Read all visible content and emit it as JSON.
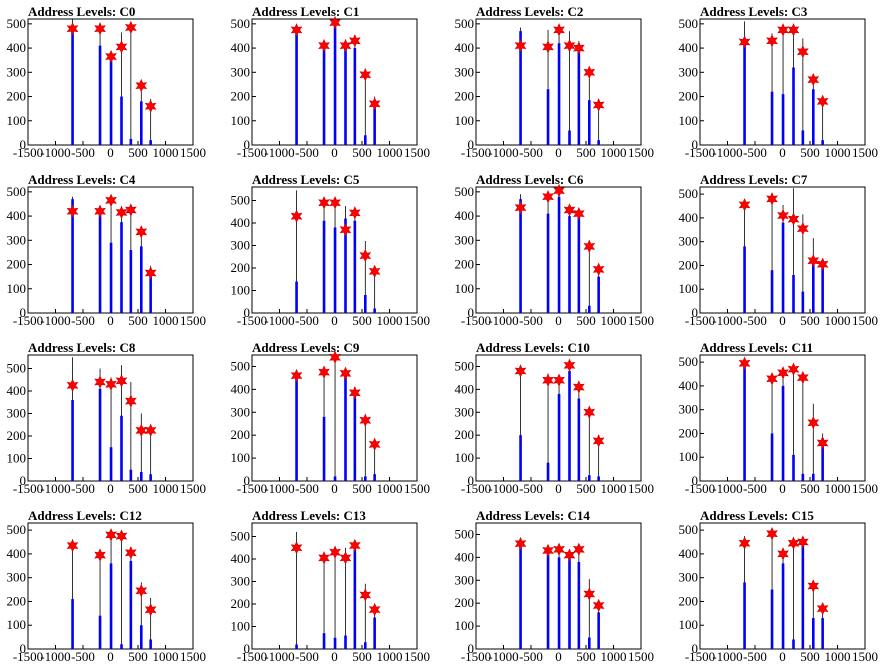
{
  "colors": {
    "bar": "#0000ff",
    "line": "#000000",
    "marker": "#ff0000",
    "marker_edge": "#cc0000"
  },
  "chart_data": [
    {
      "type": "bar",
      "title": "Address Levels: C0",
      "xlim": [
        -1500,
        1500
      ],
      "ylim": [
        0,
        520
      ],
      "xticks": [
        -1500,
        -1000,
        -500,
        0,
        500,
        1000,
        1500
      ],
      "yticks": [
        0,
        100,
        200,
        300,
        400,
        500
      ],
      "x": [
        -690,
        -190,
        10,
        200,
        370,
        560,
        730
      ],
      "peak_y": [
        480,
        480,
        365,
        405,
        485,
        245,
        160
      ],
      "line_top": [
        520,
        465,
        380,
        465,
        490,
        265,
        190
      ],
      "bar_height": [
        470,
        410,
        350,
        200,
        25,
        180,
        20
      ]
    },
    {
      "type": "bar",
      "title": "Address Levels: C1",
      "xlim": [
        -1500,
        1500
      ],
      "ylim": [
        0,
        520
      ],
      "xticks": [
        -1500,
        -1000,
        -500,
        0,
        500,
        1000,
        1500
      ],
      "yticks": [
        0,
        100,
        200,
        300,
        400,
        500
      ],
      "x": [
        -690,
        -190,
        10,
        200,
        370,
        560,
        730
      ],
      "peak_y": [
        475,
        410,
        505,
        410,
        430,
        290,
        170
      ],
      "line_top": [
        495,
        420,
        515,
        425,
        445,
        300,
        200
      ],
      "bar_height": [
        475,
        400,
        500,
        400,
        400,
        40,
        180
      ]
    },
    {
      "type": "bar",
      "title": "Address Levels: C2",
      "xlim": [
        -1500,
        1500
      ],
      "ylim": [
        0,
        520
      ],
      "xticks": [
        -1500,
        -1000,
        -500,
        0,
        500,
        1000,
        1500
      ],
      "yticks": [
        0,
        100,
        200,
        300,
        400,
        500
      ],
      "x": [
        -690,
        -190,
        10,
        200,
        370,
        560,
        730
      ],
      "peak_y": [
        410,
        405,
        475,
        410,
        400,
        300,
        165
      ],
      "line_top": [
        485,
        475,
        480,
        470,
        430,
        320,
        190
      ],
      "bar_height": [
        470,
        230,
        420,
        60,
        400,
        185,
        20
      ]
    },
    {
      "type": "bar",
      "title": "Address Levels: C3",
      "xlim": [
        -1500,
        1500
      ],
      "ylim": [
        0,
        520
      ],
      "xticks": [
        -1500,
        -1000,
        -500,
        0,
        500,
        1000,
        1500
      ],
      "yticks": [
        0,
        100,
        200,
        300,
        400,
        500
      ],
      "x": [
        -690,
        -190,
        10,
        200,
        370,
        560,
        730
      ],
      "peak_y": [
        425,
        430,
        475,
        475,
        385,
        270,
        180
      ],
      "line_top": [
        510,
        460,
        490,
        480,
        440,
        290,
        195
      ],
      "bar_height": [
        420,
        220,
        210,
        320,
        60,
        230,
        20
      ]
    },
    {
      "type": "bar",
      "title": "Address Levels: C4",
      "xlim": [
        -1500,
        1500
      ],
      "ylim": [
        0,
        520
      ],
      "xticks": [
        -1500,
        -1000,
        -500,
        0,
        500,
        1000,
        1500
      ],
      "yticks": [
        0,
        100,
        200,
        300,
        400,
        500
      ],
      "x": [
        -690,
        -190,
        10,
        200,
        370,
        560,
        730
      ],
      "peak_y": [
        420,
        420,
        465,
        415,
        425,
        335,
        165
      ],
      "line_top": [
        480,
        440,
        470,
        440,
        430,
        345,
        195
      ],
      "bar_height": [
        470,
        410,
        290,
        375,
        260,
        275,
        160
      ]
    },
    {
      "type": "bar",
      "title": "Address Levels: C5",
      "xlim": [
        -1500,
        1500
      ],
      "ylim": [
        0,
        560
      ],
      "xticks": [
        -1500,
        -1000,
        -500,
        0,
        500,
        1000,
        1500
      ],
      "yticks": [
        0,
        100,
        200,
        300,
        400,
        500
      ],
      "x": [
        -690,
        -190,
        10,
        200,
        370,
        560,
        730
      ],
      "peak_y": [
        430,
        490,
        490,
        370,
        445,
        255,
        185
      ],
      "line_top": [
        545,
        510,
        495,
        475,
        460,
        320,
        200
      ],
      "bar_height": [
        140,
        410,
        380,
        420,
        410,
        80,
        20
      ]
    },
    {
      "type": "bar",
      "title": "Address Levels: C6",
      "xlim": [
        -1500,
        1500
      ],
      "ylim": [
        0,
        520
      ],
      "xticks": [
        -1500,
        -1000,
        -500,
        0,
        500,
        1000,
        1500
      ],
      "yticks": [
        0,
        100,
        200,
        300,
        400,
        500
      ],
      "x": [
        -690,
        -190,
        10,
        200,
        370,
        560,
        730
      ],
      "peak_y": [
        435,
        480,
        505,
        425,
        410,
        275,
        180
      ],
      "line_top": [
        490,
        490,
        520,
        440,
        430,
        300,
        190
      ],
      "bar_height": [
        470,
        410,
        480,
        400,
        400,
        30,
        150
      ]
    },
    {
      "type": "bar",
      "title": "Address Levels: C7",
      "xlim": [
        -1500,
        1500
      ],
      "ylim": [
        0,
        530
      ],
      "xticks": [
        -1500,
        -1000,
        -500,
        0,
        500,
        1000,
        1500
      ],
      "yticks": [
        0,
        100,
        200,
        300,
        400,
        500
      ],
      "x": [
        -690,
        -190,
        10,
        200,
        370,
        560,
        730
      ],
      "peak_y": [
        455,
        480,
        410,
        395,
        355,
        220,
        205
      ],
      "line_top": [
        470,
        485,
        455,
        525,
        415,
        315,
        215
      ],
      "bar_height": [
        280,
        180,
        380,
        160,
        90,
        210,
        200
      ]
    },
    {
      "type": "bar",
      "title": "Address Levels: C8",
      "xlim": [
        -1500,
        1500
      ],
      "ylim": [
        0,
        560
      ],
      "xticks": [
        -1500,
        -1000,
        -500,
        0,
        500,
        1000,
        1500
      ],
      "yticks": [
        0,
        100,
        200,
        300,
        400,
        500
      ],
      "x": [
        -690,
        -190,
        10,
        200,
        370,
        560,
        730
      ],
      "peak_y": [
        425,
        440,
        430,
        445,
        355,
        225,
        225
      ],
      "line_top": [
        550,
        500,
        460,
        515,
        440,
        300,
        235
      ],
      "bar_height": [
        360,
        410,
        150,
        290,
        50,
        40,
        30
      ]
    },
    {
      "type": "bar",
      "title": "Address Levels: C9",
      "xlim": [
        -1500,
        1500
      ],
      "ylim": [
        0,
        550
      ],
      "xticks": [
        -1500,
        -1000,
        -500,
        0,
        500,
        1000,
        1500
      ],
      "yticks": [
        0,
        100,
        200,
        300,
        400,
        500
      ],
      "x": [
        -690,
        -190,
        10,
        200,
        370,
        560,
        730
      ],
      "peak_y": [
        460,
        475,
        540,
        470,
        385,
        265,
        160
      ],
      "line_top": [
        470,
        480,
        545,
        480,
        410,
        280,
        185
      ],
      "bar_height": [
        460,
        280,
        20,
        460,
        380,
        20,
        30
      ]
    },
    {
      "type": "bar",
      "title": "Address Levels: C10",
      "xlim": [
        -1500,
        1500
      ],
      "ylim": [
        0,
        550
      ],
      "xticks": [
        -1500,
        -1000,
        -500,
        0,
        500,
        1000,
        1500
      ],
      "yticks": [
        0,
        100,
        200,
        300,
        400,
        500
      ],
      "x": [
        -690,
        -190,
        10,
        200,
        370,
        560,
        730
      ],
      "peak_y": [
        480,
        440,
        440,
        505,
        410,
        300,
        175
      ],
      "line_top": [
        485,
        470,
        460,
        515,
        430,
        320,
        195
      ],
      "bar_height": [
        200,
        80,
        380,
        480,
        360,
        25,
        20
      ]
    },
    {
      "type": "bar",
      "title": "Address Levels: C11",
      "xlim": [
        -1500,
        1500
      ],
      "ylim": [
        0,
        530
      ],
      "xticks": [
        -1500,
        -1000,
        -500,
        0,
        500,
        1000,
        1500
      ],
      "yticks": [
        0,
        100,
        200,
        300,
        400,
        500
      ],
      "x": [
        -690,
        -190,
        10,
        200,
        370,
        560,
        730
      ],
      "peak_y": [
        495,
        430,
        455,
        470,
        435,
        245,
        160
      ],
      "line_top": [
        500,
        445,
        460,
        475,
        440,
        325,
        200
      ],
      "bar_height": [
        480,
        200,
        400,
        110,
        30,
        30,
        180
      ]
    },
    {
      "type": "bar",
      "title": "Address Levels: C12",
      "xlim": [
        -1500,
        1500
      ],
      "ylim": [
        0,
        530
      ],
      "xticks": [
        -1500,
        -1000,
        -500,
        0,
        500,
        1000,
        1500
      ],
      "yticks": [
        0,
        100,
        200,
        300,
        400,
        500
      ],
      "x": [
        -690,
        -190,
        10,
        200,
        370,
        560,
        730
      ],
      "peak_y": [
        435,
        395,
        480,
        475,
        405,
        245,
        165
      ],
      "line_top": [
        460,
        410,
        490,
        495,
        425,
        280,
        215
      ],
      "bar_height": [
        210,
        140,
        360,
        20,
        370,
        100,
        40
      ]
    },
    {
      "type": "bar",
      "title": "Address Levels: C13",
      "xlim": [
        -1500,
        1500
      ],
      "ylim": [
        0,
        560
      ],
      "xticks": [
        -1500,
        -1000,
        -500,
        0,
        500,
        1000,
        1500
      ],
      "yticks": [
        0,
        100,
        200,
        300,
        400,
        500
      ],
      "x": [
        -690,
        -190,
        10,
        200,
        370,
        560,
        730
      ],
      "peak_y": [
        450,
        405,
        430,
        405,
        460,
        240,
        175
      ],
      "line_top": [
        520,
        425,
        435,
        450,
        465,
        290,
        190
      ],
      "bar_height": [
        20,
        70,
        50,
        60,
        440,
        30,
        140
      ]
    },
    {
      "type": "bar",
      "title": "Address Levels: C14",
      "xlim": [
        -1500,
        1500
      ],
      "ylim": [
        0,
        550
      ],
      "xticks": [
        -1500,
        -1000,
        -500,
        0,
        500,
        1000,
        1500
      ],
      "yticks": [
        0,
        100,
        200,
        300,
        400,
        500
      ],
      "x": [
        -690,
        -190,
        10,
        200,
        370,
        560,
        730
      ],
      "peak_y": [
        460,
        430,
        435,
        410,
        435,
        240,
        190
      ],
      "line_top": [
        475,
        435,
        450,
        420,
        455,
        305,
        200
      ],
      "bar_height": [
        450,
        410,
        400,
        400,
        380,
        50,
        160
      ]
    },
    {
      "type": "bar",
      "title": "Address Levels: C15",
      "xlim": [
        -1500,
        1500
      ],
      "ylim": [
        0,
        530
      ],
      "xticks": [
        -1500,
        -1000,
        -500,
        0,
        500,
        1000,
        1500
      ],
      "yticks": [
        0,
        100,
        200,
        300,
        400,
        500
      ],
      "x": [
        -690,
        -190,
        10,
        200,
        370,
        560,
        730
      ],
      "peak_y": [
        445,
        485,
        400,
        445,
        450,
        265,
        170
      ],
      "line_top": [
        475,
        490,
        405,
        465,
        460,
        285,
        185
      ],
      "bar_height": [
        280,
        250,
        360,
        40,
        440,
        130,
        130
      ]
    }
  ]
}
